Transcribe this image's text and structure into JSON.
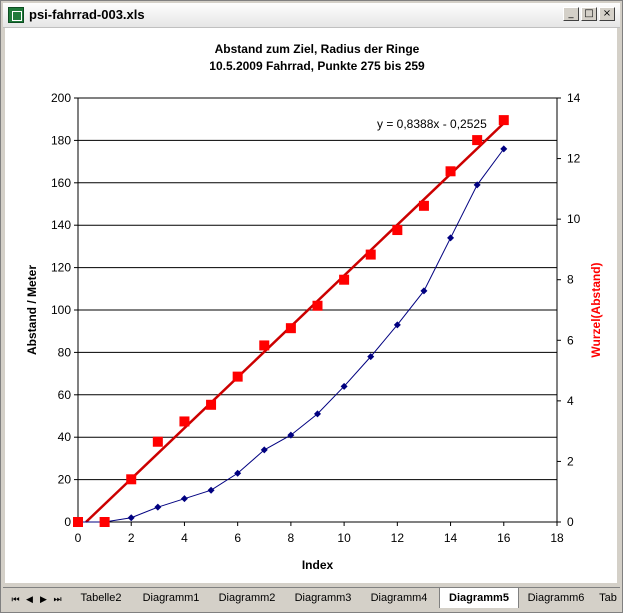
{
  "window": {
    "title": "psi-fahrrad-003.xls",
    "buttons": {
      "minimize": "_",
      "maximize": "□",
      "close": "×"
    }
  },
  "sheet_tabs": {
    "nav": [
      "⏮",
      "◀",
      "▶",
      "⏭"
    ],
    "tabs": [
      "Tabelle2",
      "Diagramm1",
      "Diagramm2",
      "Diagramm3",
      "Diagramm4",
      "Diagramm5",
      "Diagramm6",
      "Tab"
    ],
    "active": "Diagramm5"
  },
  "colors": {
    "primary_series": "#000080",
    "secondary_series": "#ff0000",
    "trendline": "#cc0000"
  },
  "chart_data": {
    "type": "line",
    "title": "Abstand zum Ziel, Radius der Ringe",
    "subtitle": "10.5.2009 Fahrrad, Punkte 275 bis 259",
    "xlabel": "Index",
    "ylabel": "Abstand / Meter",
    "y2label": "Wurzel(Abstand)",
    "xlim": [
      0,
      18
    ],
    "ylim": [
      0,
      200
    ],
    "y2lim": [
      0,
      14
    ],
    "xticks": [
      0,
      2,
      4,
      6,
      8,
      10,
      12,
      14,
      16,
      18
    ],
    "yticks": [
      0,
      20,
      40,
      60,
      80,
      100,
      120,
      140,
      160,
      180,
      200
    ],
    "y2ticks": [
      0,
      2,
      4,
      6,
      8,
      10,
      12,
      14
    ],
    "grid": "horizontal",
    "series": [
      {
        "axis": "primary",
        "marker": "diamond",
        "x": [
          0,
          1,
          2,
          3,
          4,
          5,
          6,
          7,
          8,
          9,
          10,
          11,
          12,
          13,
          14,
          15,
          16
        ],
        "values": [
          0,
          0,
          2,
          7,
          11,
          15,
          23,
          34,
          41,
          51,
          64,
          78,
          93,
          109,
          134,
          159,
          176
        ]
      },
      {
        "axis": "secondary",
        "marker": "square",
        "x": [
          0,
          1,
          2,
          3,
          4,
          5,
          6,
          7,
          8,
          9,
          10,
          11,
          12,
          13,
          14,
          15,
          16
        ],
        "values": [
          0,
          0,
          1.41,
          2.65,
          3.32,
          3.87,
          4.8,
          5.83,
          6.4,
          7.14,
          8.0,
          8.83,
          9.64,
          10.44,
          11.58,
          12.61,
          13.27
        ]
      }
    ],
    "trendline": {
      "axis": "secondary",
      "slope": 0.8388,
      "intercept": -0.2525,
      "label": "y = 0,8388x - 0,2525"
    }
  }
}
